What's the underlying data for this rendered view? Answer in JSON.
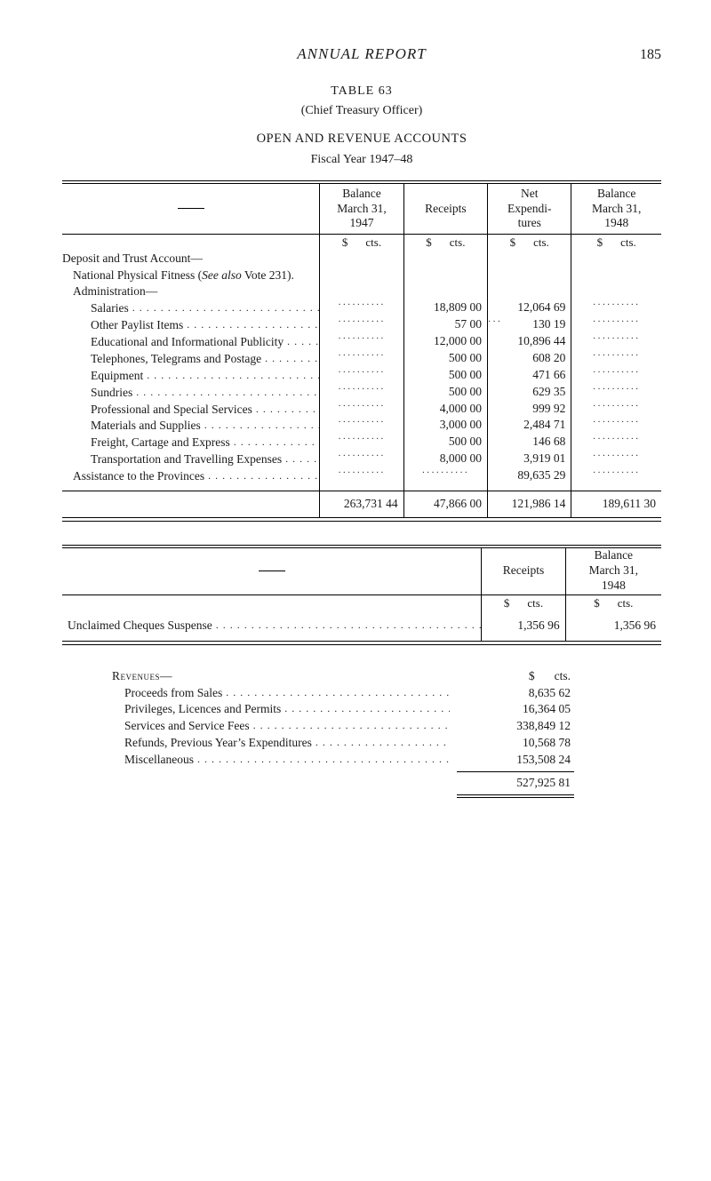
{
  "page": {
    "running_title": "ANNUAL REPORT",
    "page_number": "185",
    "table_no": "TABLE 63",
    "subhead": "(Chief Treasury Officer)",
    "main_head": "OPEN AND REVENUE ACCOUNTS",
    "fiscal_year": "Fiscal Year 1947–48"
  },
  "t1": {
    "headers": {
      "c1": "Balance\nMarch 31,\n1947",
      "c2": "Receipts",
      "c3": "Net\nExpendi-\ntures",
      "c4": "Balance\nMarch 31,\n1948"
    },
    "unit_dollar": "$",
    "unit_cts": "cts.",
    "rows": [
      {
        "type": "text",
        "indent": 0,
        "label": "Deposit and Trust Account—"
      },
      {
        "type": "text",
        "indent": 1,
        "label": "National Physical Fitness (See also Vote 231).",
        "italic_span": "See also"
      },
      {
        "type": "text",
        "indent": 1,
        "label": "Administration—"
      },
      {
        "type": "data",
        "indent": 2,
        "label": "Salaries",
        "c2": "18,809 00",
        "c3": "12,064 69"
      },
      {
        "type": "data",
        "indent": 2,
        "label": "Other Paylist Items",
        "c2": "57 00",
        "c3": "130 19",
        "c3_prefix_dots": true
      },
      {
        "type": "data",
        "indent": 2,
        "label": "Educational and Informational Publicity",
        "c2": "12,000 00",
        "c3": "10,896 44"
      },
      {
        "type": "data",
        "indent": 2,
        "label": "Telephones, Telegrams and Postage",
        "c2": "500 00",
        "c3": "608 20"
      },
      {
        "type": "data",
        "indent": 2,
        "label": "Equipment",
        "c2": "500 00",
        "c3": "471 66"
      },
      {
        "type": "data",
        "indent": 2,
        "label": "Sundries",
        "c2": "500 00",
        "c3": "629 35"
      },
      {
        "type": "data",
        "indent": 2,
        "label": "Professional and Special Services",
        "c2": "4,000 00",
        "c3": "999 92"
      },
      {
        "type": "data",
        "indent": 2,
        "label": "Materials and Supplies",
        "c2": "3,000 00",
        "c3": "2,484 71"
      },
      {
        "type": "data",
        "indent": 2,
        "label": "Freight, Cartage and Express",
        "c2": "500 00",
        "c3": "146 68"
      },
      {
        "type": "data",
        "indent": 2,
        "label": "Transportation and Travelling Expenses",
        "c2": "8,000 00",
        "c3": "3,919 01"
      },
      {
        "type": "data",
        "indent": 1,
        "label": "Assistance to the Provinces",
        "c2_dots": true,
        "c3": "89,635 29"
      }
    ],
    "total": {
      "c1": "263,731 44",
      "c2": "47,866 00",
      "c3": "121,986 14",
      "c4": "189,611 30"
    }
  },
  "t2": {
    "headers": {
      "c1": "Receipts",
      "c2": "Balance\nMarch 31,\n1948"
    },
    "unit_dollar": "$",
    "unit_cts": "cts.",
    "row": {
      "label": "Unclaimed Cheques Suspense",
      "c1": "1,356 96",
      "c2": "1,356 96"
    }
  },
  "rev": {
    "head": "Revenues—",
    "unit_dollar": "$",
    "unit_cts": "cts.",
    "rows": [
      {
        "label": "Proceeds from Sales",
        "amount": "8,635 62"
      },
      {
        "label": "Privileges, Licences and Permits",
        "amount": "16,364 05"
      },
      {
        "label": "Services and Service Fees",
        "amount": "338,849 12"
      },
      {
        "label": "Refunds, Previous Year’s Expenditures",
        "amount": "10,568 78"
      },
      {
        "label": "Miscellaneous",
        "amount": "153,508 24"
      }
    ],
    "total": "527,925 81"
  }
}
